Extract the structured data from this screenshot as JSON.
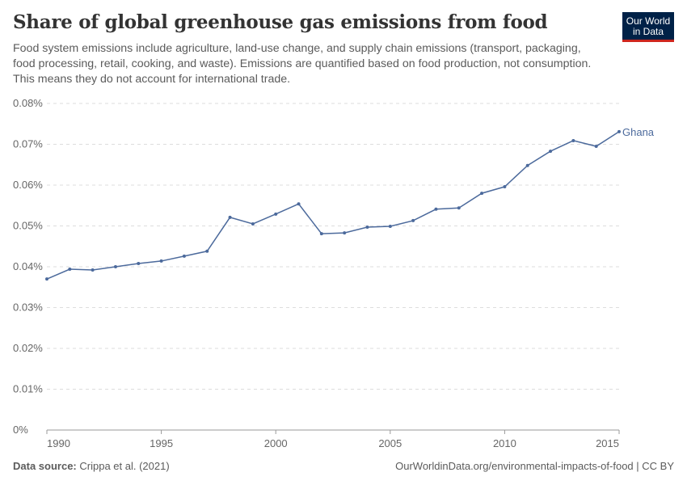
{
  "header": {
    "title": "Share of global greenhouse gas emissions from food",
    "subtitle": "Food system emissions include agriculture, land-use change, and supply chain emissions (transport, packaging, food processing, retail, cooking, and waste). Emissions are quantified based on food production, not consumption. This means they do not account for international trade.",
    "logo": "Our World in Data"
  },
  "footer": {
    "source_label": "Data source:",
    "source": "Crippa et al. (2021)",
    "link": "OurWorldinData.org/environmental-impacts-of-food | CC BY"
  },
  "chart_data": {
    "type": "line",
    "title": "Share of global greenhouse gas emissions from food",
    "xlim": [
      1990,
      2015
    ],
    "ylim": [
      0,
      0.08
    ],
    "grid": "horizontal dashed",
    "x_ticks": [
      1990,
      1995,
      2000,
      2005,
      2010,
      2015
    ],
    "y_ticks": [
      "0%",
      "0.01%",
      "0.02%",
      "0.03%",
      "0.04%",
      "0.05%",
      "0.06%",
      "0.07%",
      "0.08%"
    ],
    "color": "#4c6a9c",
    "series": [
      {
        "name": "Ghana",
        "x": [
          1990,
          1991,
          1992,
          1993,
          1994,
          1995,
          1996,
          1997,
          1998,
          1999,
          2000,
          2001,
          2002,
          2003,
          2004,
          2005,
          2006,
          2007,
          2008,
          2009,
          2010,
          2011,
          2012,
          2013,
          2014,
          2015
        ],
        "values": [
          0.037,
          0.0394,
          0.0392,
          0.04,
          0.0408,
          0.0414,
          0.0426,
          0.0438,
          0.0521,
          0.0505,
          0.0529,
          0.0554,
          0.0481,
          0.0483,
          0.0497,
          0.0499,
          0.0513,
          0.0541,
          0.0544,
          0.058,
          0.0596,
          0.0648,
          0.0683,
          0.0709,
          0.0695,
          0.0731
        ]
      }
    ]
  }
}
